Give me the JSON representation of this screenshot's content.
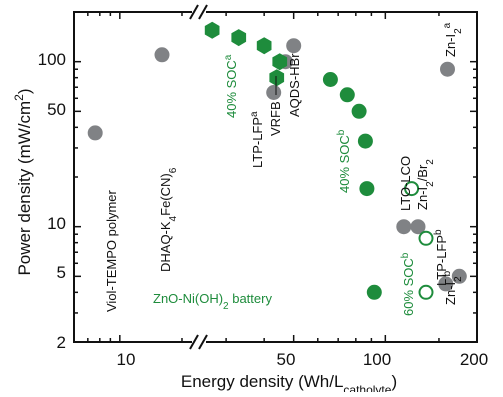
{
  "chart_data": {
    "type": "scatter",
    "xlabel": "Energy density (Wh/L",
    "xlabel_sub": "catholyte",
    "xlabel_close": ")",
    "ylabel": "Power density (mW/cm",
    "ylabel_sup": "2",
    "ylabel_close": ")",
    "xscale": "log",
    "yscale": "log",
    "xlim": [
      6,
      200
    ],
    "ylim": [
      2,
      200
    ],
    "axis_break_x": 25,
    "x_ticks": [
      10,
      50,
      100,
      200
    ],
    "x_tick_labels": [
      "10",
      "50",
      "100",
      "200"
    ],
    "y_ticks": [
      2,
      5,
      10,
      50,
      100
    ],
    "y_tick_labels": [
      "2",
      "5",
      "10",
      "50",
      "100"
    ],
    "grid": false,
    "colors": {
      "gray": "#808285",
      "green": "#1e8c3c",
      "green_text": "#1e8c3c",
      "black": "#111111"
    },
    "series": [
      {
        "marker": "circle-gray",
        "points": [
          {
            "x": 7.6,
            "y": 37
          },
          {
            "x": 16,
            "y": 110
          },
          {
            "x": 43,
            "y": 65
          },
          {
            "x": 47,
            "y": 100
          },
          {
            "x": 50,
            "y": 125
          },
          {
            "x": 160,
            "y": 90
          },
          {
            "x": 115,
            "y": 10
          },
          {
            "x": 128,
            "y": 10
          },
          {
            "x": 175,
            "y": 5
          },
          {
            "x": 158,
            "y": 4.5
          }
        ]
      },
      {
        "marker": "hexagon-green",
        "points": [
          {
            "x": 27,
            "y": 155
          },
          {
            "x": 33,
            "y": 140
          },
          {
            "x": 40,
            "y": 125
          },
          {
            "x": 45,
            "y": 100
          },
          {
            "x": 44,
            "y": 80
          }
        ]
      },
      {
        "marker": "circle-green",
        "points": [
          {
            "x": 66,
            "y": 78
          },
          {
            "x": 75,
            "y": 63
          },
          {
            "x": 82,
            "y": 50
          },
          {
            "x": 86,
            "y": 33
          },
          {
            "x": 87,
            "y": 17
          },
          {
            "x": 92,
            "y": 4
          }
        ]
      },
      {
        "marker": "circle-open-green",
        "points": [
          {
            "x": 122,
            "y": 17
          },
          {
            "x": 136,
            "y": 8.5
          },
          {
            "x": 136,
            "y": 4
          }
        ]
      }
    ],
    "annotations": [
      {
        "text": "Viol-TEMPO polymer",
        "color": "black"
      },
      {
        "text": "DHAQ-K",
        "sub1": "4",
        "mid": "Fe(CN)",
        "sub2": "6",
        "color": "black"
      },
      {
        "text": "40% SOC",
        "sup": "a",
        "color": "green"
      },
      {
        "text": "LTP-LFP",
        "sup": "a",
        "color": "black"
      },
      {
        "text": "VRFB",
        "color": "black"
      },
      {
        "text": "AQDS-HBr",
        "color": "black"
      },
      {
        "text": "40% SOC",
        "sup": "b",
        "color": "green"
      },
      {
        "text": "Zn-I",
        "sub": "2",
        "sup": "a",
        "color": "black"
      },
      {
        "text": "LTO-LCO",
        "color": "black"
      },
      {
        "text": "Zn-I",
        "sub": "2",
        "mid": "/Br",
        "sub2": "2",
        "color": "black"
      },
      {
        "text": "60% SOC",
        "sup": "b",
        "color": "green"
      },
      {
        "text": "LTP-LFP",
        "sup": "b",
        "color": "black"
      },
      {
        "text": "Zn-I",
        "sub": "2",
        "sup": "b",
        "color": "black"
      },
      {
        "text": "ZnO-Ni(OH)",
        "sub": "2",
        "tail": " battery",
        "color": "green"
      }
    ]
  }
}
